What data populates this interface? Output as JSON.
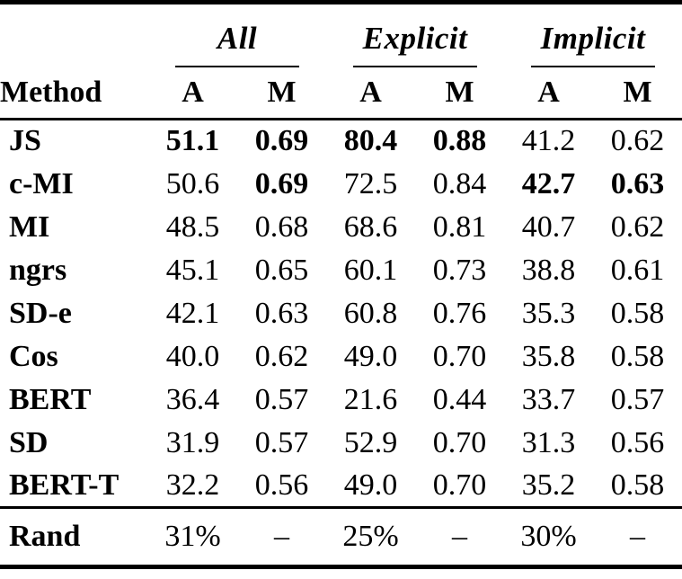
{
  "colors": {
    "text": "#000000",
    "background": "#ffffff",
    "rule": "#000000"
  },
  "table": {
    "groups": [
      {
        "label": "All"
      },
      {
        "label": "Explicit"
      },
      {
        "label": "Implicit"
      }
    ],
    "method_header": "Method",
    "subheaders": [
      "A",
      "M",
      "A",
      "M",
      "A",
      "M"
    ],
    "rows": [
      {
        "method": "JS",
        "values": [
          "51.1",
          "0.69",
          "80.4",
          "0.88",
          "41.2",
          "0.62"
        ],
        "bold": [
          true,
          true,
          true,
          true,
          false,
          false
        ]
      },
      {
        "method": "c-MI",
        "values": [
          "50.6",
          "0.69",
          "72.5",
          "0.84",
          "42.7",
          "0.63"
        ],
        "bold": [
          false,
          true,
          false,
          false,
          true,
          true
        ]
      },
      {
        "method": "MI",
        "values": [
          "48.5",
          "0.68",
          "68.6",
          "0.81",
          "40.7",
          "0.62"
        ],
        "bold": [
          false,
          false,
          false,
          false,
          false,
          false
        ]
      },
      {
        "method": "ngrs",
        "values": [
          "45.1",
          "0.65",
          "60.1",
          "0.73",
          "38.8",
          "0.61"
        ],
        "bold": [
          false,
          false,
          false,
          false,
          false,
          false
        ]
      },
      {
        "method": "SD-e",
        "values": [
          "42.1",
          "0.63",
          "60.8",
          "0.76",
          "35.3",
          "0.58"
        ],
        "bold": [
          false,
          false,
          false,
          false,
          false,
          false
        ]
      },
      {
        "method": "Cos",
        "values": [
          "40.0",
          "0.62",
          "49.0",
          "0.70",
          "35.8",
          "0.58"
        ],
        "bold": [
          false,
          false,
          false,
          false,
          false,
          false
        ]
      },
      {
        "method": "BERT",
        "values": [
          "36.4",
          "0.57",
          "21.6",
          "0.44",
          "33.7",
          "0.57"
        ],
        "bold": [
          false,
          false,
          false,
          false,
          false,
          false
        ]
      },
      {
        "method": "SD",
        "values": [
          "31.9",
          "0.57",
          "52.9",
          "0.70",
          "31.3",
          "0.56"
        ],
        "bold": [
          false,
          false,
          false,
          false,
          false,
          false
        ]
      },
      {
        "method": "BERT-T",
        "values": [
          "32.2",
          "0.56",
          "49.0",
          "0.70",
          "35.2",
          "0.58"
        ],
        "bold": [
          false,
          false,
          false,
          false,
          false,
          false
        ]
      }
    ],
    "footer": {
      "method": "Rand",
      "values": [
        "31%",
        "–",
        "25%",
        "–",
        "30%",
        "–"
      ]
    }
  }
}
